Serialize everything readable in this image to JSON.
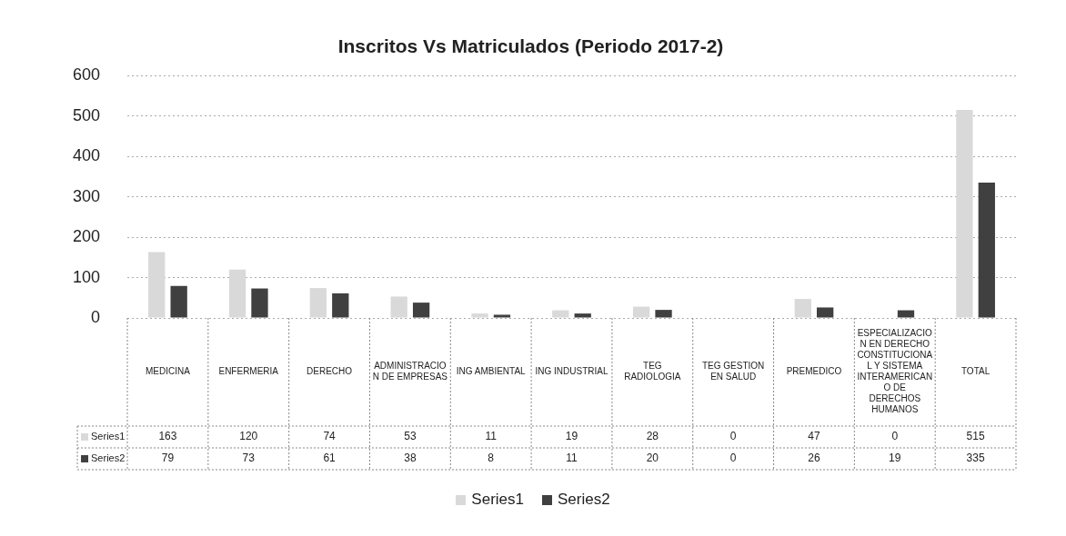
{
  "chart_data": {
    "type": "bar",
    "title": "Inscritos Vs Matriculados (Periodo 2017-2)",
    "categories": [
      "MEDICINA",
      "ENFERMERIA",
      "DERECHO",
      "ADMINISTRACION DE EMPRESAS",
      "ING AMBIENTAL",
      "ING INDUSTRIAL",
      "TEG RADIOLOGIA",
      "TEG GESTION EN SALUD",
      "PREMEDICO",
      "ESPECIALIZACION EN DERECHO CONSTITUCIONAL Y SISTEMA INTERAMERICANO DE DERECHOS HUMANOS",
      "TOTAL"
    ],
    "series": [
      {
        "name": "Series1",
        "color": "#d9d9d9",
        "values": [
          163,
          120,
          74,
          53,
          11,
          19,
          28,
          0,
          47,
          0,
          515
        ]
      },
      {
        "name": "Series2",
        "color": "#404040",
        "values": [
          79,
          73,
          61,
          38,
          8,
          11,
          20,
          0,
          26,
          19,
          335
        ]
      }
    ],
    "ylim": [
      0,
      600
    ],
    "yticks": [
      0,
      100,
      200,
      300,
      400,
      500,
      600
    ],
    "grid": "y",
    "legend": "bottom",
    "data_labels": true
  }
}
